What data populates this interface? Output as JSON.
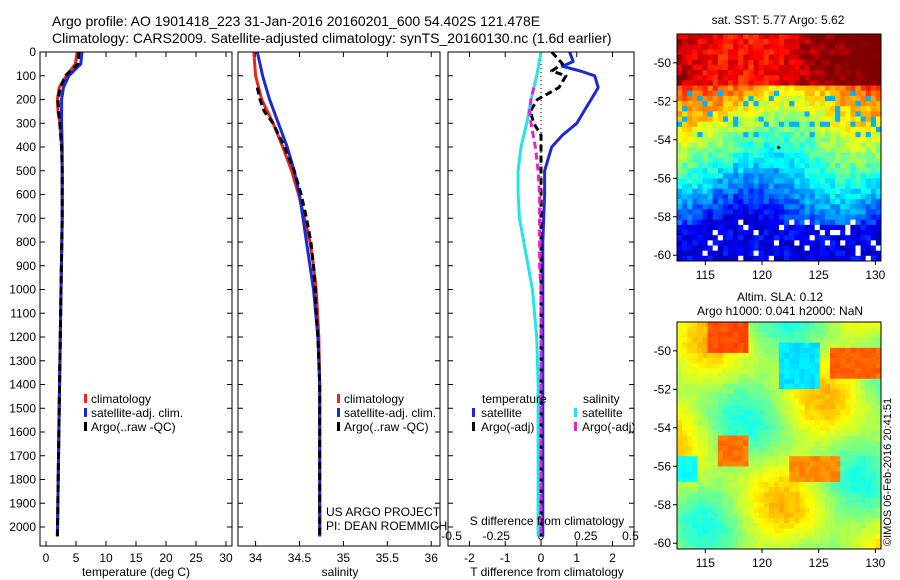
{
  "header": {
    "line1": "Argo profile: AO 1901418_223 31-Jan-2016 20160201_600 54.402S 121.478E",
    "line2": "Climatology: CARS2009. Satellite-adjusted climatology: synTS_20160130.nc (1.6d earlier)"
  },
  "colors": {
    "climatology": "#e8241b",
    "satellite": "#1a28d6",
    "argo": "#000000",
    "salinity_satellite": "#22e5e8",
    "salinity_argo": "#e81fd6"
  },
  "credit": {
    "project": "US ARGO PROJECT",
    "pi": "PI: DEAN ROEMMICH"
  },
  "watermark": "©IMOS 06-Feb-2016 20:41:51",
  "chart_data": [
    {
      "type": "line",
      "panel": "temperature",
      "xlabel": "temperature (deg C)",
      "ylabel": "",
      "xlim": [
        -1,
        31
      ],
      "ylim": [
        2080,
        0
      ],
      "xticks": [
        0,
        5,
        10,
        15,
        20,
        25,
        30
      ],
      "yticks": [
        0,
        100,
        200,
        300,
        400,
        500,
        600,
        700,
        800,
        900,
        1000,
        1100,
        1200,
        1300,
        1400,
        1500,
        1600,
        1700,
        1800,
        1900,
        2000
      ],
      "legend": [
        "climatology",
        "satellite-adj. clim.",
        "Argo(..raw -QC)"
      ],
      "legend_position": "lower-right",
      "series": [
        {
          "name": "climatology",
          "style": "solid",
          "color_key": "climatology",
          "depth": [
            0,
            50,
            100,
            150,
            200,
            250,
            300,
            400,
            500,
            700,
            1000,
            1500,
            2040
          ],
          "values": [
            5.2,
            4.9,
            3.4,
            2.2,
            1.9,
            2.0,
            2.3,
            2.6,
            2.7,
            2.7,
            2.5,
            2.2,
            1.9
          ]
        },
        {
          "name": "satellite-adj. clim.",
          "style": "solid",
          "color_key": "satellite",
          "depth": [
            0,
            50,
            100,
            150,
            200,
            250,
            300,
            400,
            500,
            700,
            1000,
            1500,
            2040
          ],
          "values": [
            6.0,
            5.8,
            3.8,
            2.9,
            2.6,
            2.6,
            2.6,
            2.7,
            2.7,
            2.7,
            2.5,
            2.2,
            1.9
          ]
        },
        {
          "name": "Argo(..raw -QC)",
          "style": "dashed",
          "color_key": "argo",
          "depth": [
            0,
            50,
            100,
            150,
            200,
            250,
            300,
            400,
            500,
            700,
            1000,
            1500,
            2040
          ],
          "values": [
            5.5,
            5.3,
            3.2,
            2.4,
            2.0,
            2.1,
            2.3,
            2.6,
            2.7,
            2.7,
            2.5,
            2.2,
            1.9
          ]
        }
      ]
    },
    {
      "type": "line",
      "panel": "salinity",
      "xlabel": "salinity",
      "ylabel": "",
      "xlim": [
        33.8,
        36.1
      ],
      "ylim": [
        2080,
        0
      ],
      "xticks": [
        34,
        34.5,
        35,
        35.5,
        36
      ],
      "xtick_labels": [
        "34",
        "34.5",
        "35",
        "35.5",
        "36"
      ],
      "legend": [
        "climatology",
        "satellite-adj. clim.",
        "Argo(..raw -QC)"
      ],
      "legend_position": "lower-right",
      "series": [
        {
          "name": "climatology",
          "style": "solid",
          "color_key": "climatology",
          "depth": [
            0,
            50,
            100,
            200,
            300,
            400,
            500,
            600,
            700,
            800,
            900,
            1000,
            1200,
            1400,
            1600,
            2040
          ],
          "values": [
            33.98,
            33.99,
            34.0,
            34.07,
            34.2,
            34.31,
            34.41,
            34.49,
            34.56,
            34.62,
            34.66,
            34.69,
            34.72,
            34.73,
            34.73,
            34.73
          ]
        },
        {
          "name": "satellite-adj. clim.",
          "style": "solid",
          "color_key": "satellite",
          "depth": [
            0,
            50,
            100,
            200,
            300,
            400,
            500,
            600,
            700,
            800,
            900,
            1000,
            1200,
            1400,
            1600,
            2040
          ],
          "values": [
            34.02,
            34.05,
            34.08,
            34.16,
            34.26,
            34.36,
            34.44,
            34.5,
            34.54,
            34.58,
            34.62,
            34.66,
            34.71,
            34.73,
            34.73,
            34.73
          ]
        },
        {
          "name": "Argo(..raw -QC)",
          "style": "dashed",
          "color_key": "argo",
          "depth": [
            150,
            200,
            250,
            300,
            400,
            500,
            600,
            700,
            800,
            900,
            1000,
            1100,
            1200,
            1400,
            1600,
            2040
          ],
          "values": [
            34.02,
            34.05,
            34.1,
            34.2,
            34.33,
            34.44,
            34.52,
            34.58,
            34.63,
            34.66,
            34.68,
            34.69,
            34.71,
            34.73,
            34.73,
            34.73
          ]
        }
      ]
    },
    {
      "type": "line",
      "panel": "differences",
      "xlabel": "T difference from climatology",
      "x2label": "S difference from climatology",
      "xlim": [
        -2.6,
        2.6
      ],
      "ylim": [
        2080,
        0
      ],
      "xticks": [
        -2,
        -1,
        0,
        1,
        2
      ],
      "x2ticks": [
        -0.5,
        -0.25,
        0,
        0.25,
        0.5
      ],
      "x2tick_labels": [
        "-0.5",
        "-0.25",
        "0",
        "0.25",
        "0.5"
      ],
      "legend_groups": [
        {
          "title": "temperature",
          "items": [
            "satellite",
            "Argo(-adj)"
          ]
        },
        {
          "title": "salinity",
          "items": [
            "satellite",
            "Argo(-adj)"
          ]
        }
      ],
      "series": [
        {
          "name": "temperature satellite",
          "style": "solid",
          "color_key": "satellite",
          "depth": [
            0,
            40,
            60,
            80,
            100,
            150,
            200,
            250,
            300,
            350,
            400,
            500,
            600,
            800,
            1000,
            1200,
            1500,
            1800,
            2040
          ],
          "values": [
            0.8,
            0.9,
            0.6,
            1.1,
            1.5,
            1.6,
            1.4,
            1.2,
            1.0,
            0.6,
            0.3,
            0.1,
            0.1,
            0.05,
            0.05,
            0.05,
            0.05,
            0.05,
            0.05
          ]
        },
        {
          "name": "temperature Argo(-adj)",
          "style": "dashed",
          "color_key": "argo",
          "depth": [
            0,
            50,
            80,
            100,
            150,
            200,
            250,
            300,
            350,
            400,
            500,
            600,
            800,
            1000,
            1500,
            2040
          ],
          "values": [
            0.3,
            0.6,
            0.3,
            0.7,
            0.5,
            -0.1,
            -0.3,
            -0.2,
            0.0,
            0.0,
            0.0,
            0.0,
            0.0,
            0.0,
            0.0,
            0.0
          ]
        },
        {
          "name": "salinity satellite",
          "style": "solid",
          "color_key": "salinity_satellite",
          "depth": [
            0,
            100,
            200,
            300,
            400,
            500,
            600,
            700,
            800,
            1000,
            1200,
            1400,
            1600,
            2040
          ],
          "values": [
            0.0,
            -0.03,
            -0.07,
            -0.1,
            -0.14,
            -0.16,
            -0.16,
            -0.15,
            -0.12,
            -0.06,
            -0.03,
            -0.02,
            -0.02,
            -0.02
          ]
        },
        {
          "name": "salinity Argo(-adj)",
          "style": "dashed",
          "color_key": "salinity_argo",
          "depth": [
            150,
            200,
            250,
            300,
            400,
            500,
            600,
            700,
            800,
            900,
            1000,
            1200,
            1400,
            1600,
            2040
          ],
          "values": [
            -0.05,
            -0.07,
            -0.08,
            -0.07,
            -0.04,
            -0.02,
            -0.01,
            -0.01,
            -0.01,
            -0.01,
            0.0,
            0.0,
            0.0,
            0.0,
            0.0
          ]
        }
      ]
    },
    {
      "type": "heatmap",
      "panel": "sst-map",
      "title": "sat. SST: 5.77  Argo: 5.62",
      "xlim": [
        112.5,
        130.5
      ],
      "ylim": [
        -60.3,
        -48.5
      ],
      "xticks": [
        115,
        120,
        125,
        130
      ],
      "yticks": [
        -50,
        -52,
        -54,
        -56,
        -58,
        -60
      ],
      "marker": {
        "x": 121.478,
        "y": -54.402
      }
    },
    {
      "type": "heatmap",
      "panel": "sla-map",
      "title": "Altim. SLA: 0.12",
      "subtitle": "Argo h1000: 0.041 h2000: NaN",
      "xlim": [
        112.5,
        130.5
      ],
      "ylim": [
        -60.3,
        -48.5
      ],
      "xticks": [
        115,
        120,
        125,
        130
      ],
      "yticks": [
        -50,
        -52,
        -54,
        -56,
        -58,
        -60
      ]
    }
  ]
}
